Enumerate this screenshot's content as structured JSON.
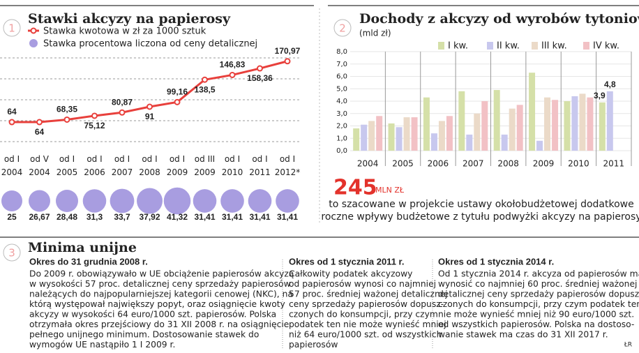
{
  "chart_data": [
    {
      "type": "line",
      "number": "1",
      "title": "Stawki akcyzy na papierosy",
      "categories": [
        "od I\n2004",
        "od V\n2004",
        "od I\n2005",
        "od I\n2006",
        "od I\n2007",
        "od I\n2008",
        "od I\n2009",
        "od III\n2009",
        "od I\n2010",
        "od I\n2011",
        "od I\n2012*"
      ],
      "ylim": [
        15,
        205
      ],
      "series": [
        {
          "name": "Stawka kwotowa w zł za 1000 sztuk",
          "type": "line",
          "color": "#e8403c",
          "values": [
            64,
            64,
            68.35,
            75.12,
            80.87,
            91,
            99.16,
            138.5,
            146.83,
            158.36,
            170.97
          ],
          "value_labels": [
            "64",
            "64",
            "68,35",
            "75,12",
            "80,87",
            "91",
            "99,16",
            "138,5",
            "146,83",
            "158,36",
            "170,97"
          ]
        },
        {
          "name": "Stawka procentowa liczona od ceny detalicznej",
          "type": "bubble",
          "color": "#a89de0",
          "values": [
            25,
            26.67,
            28.48,
            31.3,
            33.7,
            37.92,
            41.32,
            31.41,
            31.41,
            31.41,
            31.41
          ],
          "value_labels": [
            "25",
            "26,67",
            "28,48",
            "31,3",
            "33,7",
            "37,92",
            "41,32",
            "31,41",
            "31,41",
            "31,41",
            "31,41"
          ]
        }
      ]
    },
    {
      "type": "bar",
      "number": "2",
      "title": "Dochody z akcyzy od wyrobów tytoniowych",
      "subtitle": "(mld zł)",
      "categories": [
        "2004",
        "2005",
        "2006",
        "2007",
        "2008",
        "2009",
        "2010",
        "2011"
      ],
      "ylim": [
        0,
        8
      ],
      "yticks": [
        {
          "value": 0,
          "label": "0,0"
        },
        {
          "value": 1,
          "label": "1,0"
        },
        {
          "value": 2,
          "label": "2,0"
        },
        {
          "value": 3,
          "label": "3,0"
        },
        {
          "value": 4,
          "label": "4,0"
        },
        {
          "value": 5,
          "label": "5,0"
        },
        {
          "value": 6,
          "label": "6,0"
        },
        {
          "value": 7,
          "label": "7,0"
        },
        {
          "value": 8,
          "label": "8,0"
        }
      ],
      "series": [
        {
          "name": "I kw.",
          "color": "#d5e0a8",
          "values": [
            1.8,
            2.2,
            4.3,
            4.8,
            4.9,
            6.3,
            4.0,
            3.9
          ],
          "value_labels": [
            null,
            null,
            null,
            null,
            null,
            null,
            null,
            "3,9"
          ]
        },
        {
          "name": "II kw.",
          "color": "#c8c8ee",
          "values": [
            2.1,
            1.9,
            1.4,
            1.3,
            1.3,
            0.8,
            4.4,
            4.8
          ],
          "value_labels": [
            null,
            null,
            null,
            null,
            null,
            null,
            null,
            "4,8"
          ]
        },
        {
          "name": "III kw.",
          "color": "#ebdac8",
          "values": [
            2.4,
            2.7,
            2.4,
            3.0,
            3.4,
            4.3,
            4.6,
            null
          ]
        },
        {
          "name": "IV kw.",
          "color": "#f2c1c5",
          "values": [
            2.8,
            2.7,
            2.8,
            4.0,
            3.7,
            4.1,
            4.3,
            null
          ]
        }
      ]
    }
  ],
  "annotation": {
    "amount": "245",
    "unit": "MLN ZŁ",
    "lines": [
      "to szacowane w projekcie ustawy okołobudżetowej dodatkowe",
      "roczne wpływy budżetowe z tytułu podwyżki akcyzy na papierosy"
    ]
  },
  "section3": {
    "number": "3",
    "title": "Minima unijne",
    "columns": [
      {
        "heading": "Okres do 31 grudnia 2008 r.",
        "lines": [
          "Do 2009 r. obowiązywało w UE obciążenie papierosów akcyzą",
          "w wysokości 57 proc. detalicznej ceny sprzedaży papierosów",
          "należących do najpopularniejszej kategorii cenowej (NKC), na",
          "którą występował największy popyt, oraz osiągnięcie kwoty",
          "akcyzy w wysokości 64 euro/1000 szt. papierosów. Polska",
          "otrzymała okres przejściowy do 31 XII 2008 r. na osiągnięcie",
          "pełnego unijnego minimum. Dostosowanie stawek do",
          "wymogów UE nastąpiło 1 I 2009 r."
        ]
      },
      {
        "heading": "Okres od 1 stycznia 2011 r.",
        "lines": [
          "Całkowity podatek akcyzowy",
          "od papierosów wynosi co najmniej",
          "57 proc. średniej ważonej detalicznej",
          "ceny sprzedaży papierosów dopusz-",
          "czonych do konsumpcji, przy czym",
          "podatek ten nie może wynieść mniej",
          "niż 64 euro/1000 szt. od wszystkich",
          "papierosów"
        ]
      },
      {
        "heading": "Okres od 1 stycznia 2014 r.",
        "lines": [
          "Od 1 stycznia 2014 r. akcyza od papierosów ma",
          "wynosić co najmniej 60 proc. średniej ważonej",
          "detalicznej ceny sprzedaży papierosów dopusz-",
          "czonych do konsumpcji, przy czym podatek ten",
          "nie może wynieść mniej niż 90 euro/1000 szt.",
          "od wszystkich papierosów. Polska na dostoso-",
          "wanie stawek ma czas do 31 XII 2017 r."
        ]
      }
    ]
  },
  "credit": "ŁR"
}
